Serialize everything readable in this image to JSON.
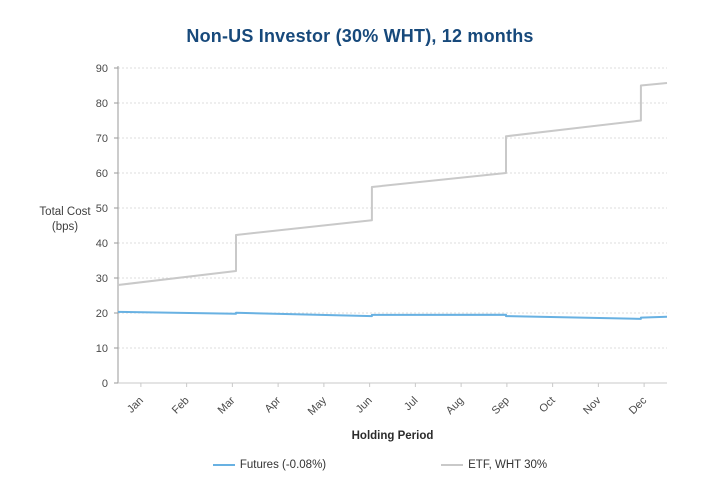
{
  "chart_data": {
    "type": "line",
    "title": "Non-US Investor (30% WHT), 12 months",
    "xlabel": "Holding Period",
    "ylabel_lines": [
      "Total Cost",
      "(bps)"
    ],
    "x_tick_labels": [
      "Jan",
      "Feb",
      "Mar",
      "Apr",
      "May",
      "Jun",
      "Jul",
      "Aug",
      "Sep",
      "Oct",
      "Nov",
      "Dec"
    ],
    "xlim": [
      0,
      12
    ],
    "ylim": [
      0,
      90
    ],
    "yticks": [
      0,
      10,
      20,
      30,
      40,
      50,
      60,
      70,
      80,
      90
    ],
    "grid": "horizontal-dashed",
    "legend_position": "bottom-center",
    "series": [
      {
        "id": "futures-line",
        "name": "Futures (-0.08%)",
        "color": "#68b1e2",
        "x": [
          0,
          2.58,
          2.58,
          5.55,
          5.55,
          8.48,
          8.48,
          11.43,
          11.43,
          12
        ],
        "y": [
          20.3,
          19.8,
          20.05,
          19.1,
          19.45,
          19.5,
          19.1,
          18.3,
          18.7,
          18.95
        ]
      },
      {
        "id": "etf-line",
        "name": "ETF, WHT 30%",
        "color": "#c9c9c9",
        "x": [
          0,
          2.58,
          2.58,
          5.55,
          5.55,
          8.48,
          8.48,
          11.43,
          11.43,
          12
        ],
        "y": [
          28,
          32,
          42.3,
          46.5,
          56,
          60,
          70.5,
          75,
          85,
          85.7
        ]
      }
    ],
    "colors": {
      "title": "#17497b",
      "grid": "#dedede",
      "y_axis": "#9a9a9a",
      "x_axis": "#c9c9c9",
      "tick_text": "#4a4a4a"
    }
  }
}
